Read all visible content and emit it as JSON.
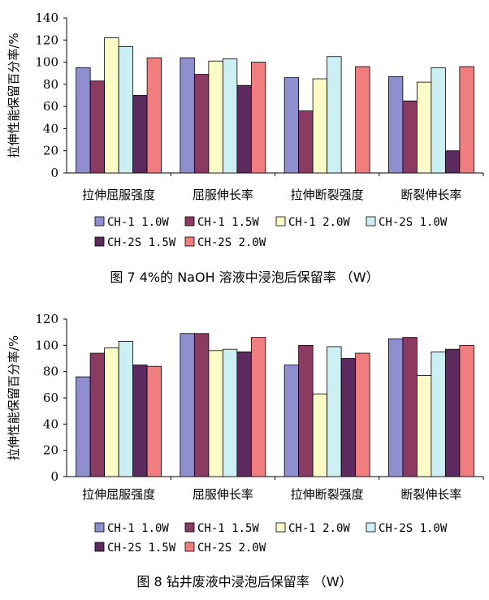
{
  "chart_data": [
    {
      "type": "bar",
      "caption": "图 7   4%的 NaOH 溶液中浸泡后保留率 （W）",
      "ylabel": "拉伸性能保留百分率/%",
      "ylim": [
        0,
        140
      ],
      "yticks": [
        "0",
        "20",
        "40",
        "60",
        "80",
        "100",
        "120",
        "140"
      ],
      "categories": [
        "拉伸屈服强度",
        "屈服伸长率",
        "拉伸断裂强度",
        "断裂伸长率"
      ],
      "series": [
        {
          "name": "CH-1  1.0W",
          "color": "#8f8fcf",
          "values": [
            95,
            104,
            86,
            87
          ]
        },
        {
          "name": "CH-1  1.5W",
          "color": "#8b3a62",
          "values": [
            83,
            89,
            56,
            65
          ]
        },
        {
          "name": "CH-1  2.0W",
          "color": "#fbfbc8",
          "values": [
            122,
            101,
            85,
            82
          ]
        },
        {
          "name": "CH-2S  1.0W",
          "color": "#cbeff2",
          "values": [
            114,
            103,
            105,
            95
          ]
        },
        {
          "name": "CH-2S  1.5W",
          "color": "#5c2a5e",
          "values": [
            70,
            79,
            0,
            20
          ]
        },
        {
          "name": "CH-2S  2.0W",
          "color": "#f07e7e",
          "values": [
            104,
            100,
            96,
            96
          ]
        }
      ],
      "legend_position": "bottom",
      "grid": false
    },
    {
      "type": "bar",
      "caption": "图 8   钻井废液中浸泡后保留率 （W）",
      "ylabel": "拉伸性能保留百分率/%",
      "ylim": [
        0,
        120
      ],
      "yticks": [
        "0",
        "20",
        "40",
        "60",
        "80",
        "100",
        "120"
      ],
      "categories": [
        "拉伸屈服强度",
        "屈服伸长率",
        "拉伸断裂强度",
        "断裂伸长率"
      ],
      "series": [
        {
          "name": "CH-1  1.0W",
          "color": "#8f8fcf",
          "values": [
            76,
            109,
            85,
            105
          ]
        },
        {
          "name": "CH-1  1.5W",
          "color": "#8b3a62",
          "values": [
            94,
            109,
            100,
            106
          ]
        },
        {
          "name": "CH-1  2.0W",
          "color": "#fbfbc8",
          "values": [
            98,
            96,
            63,
            77
          ]
        },
        {
          "name": "CH-2S  1.0W",
          "color": "#cbeff2",
          "values": [
            103,
            97,
            99,
            95
          ]
        },
        {
          "name": "CH-2S  1.5W",
          "color": "#5c2a5e",
          "values": [
            85,
            95,
            90,
            97
          ]
        },
        {
          "name": "CH-2S  2.0W",
          "color": "#f07e7e",
          "values": [
            84,
            106,
            94,
            100
          ]
        }
      ],
      "legend_position": "bottom",
      "grid": false
    }
  ]
}
